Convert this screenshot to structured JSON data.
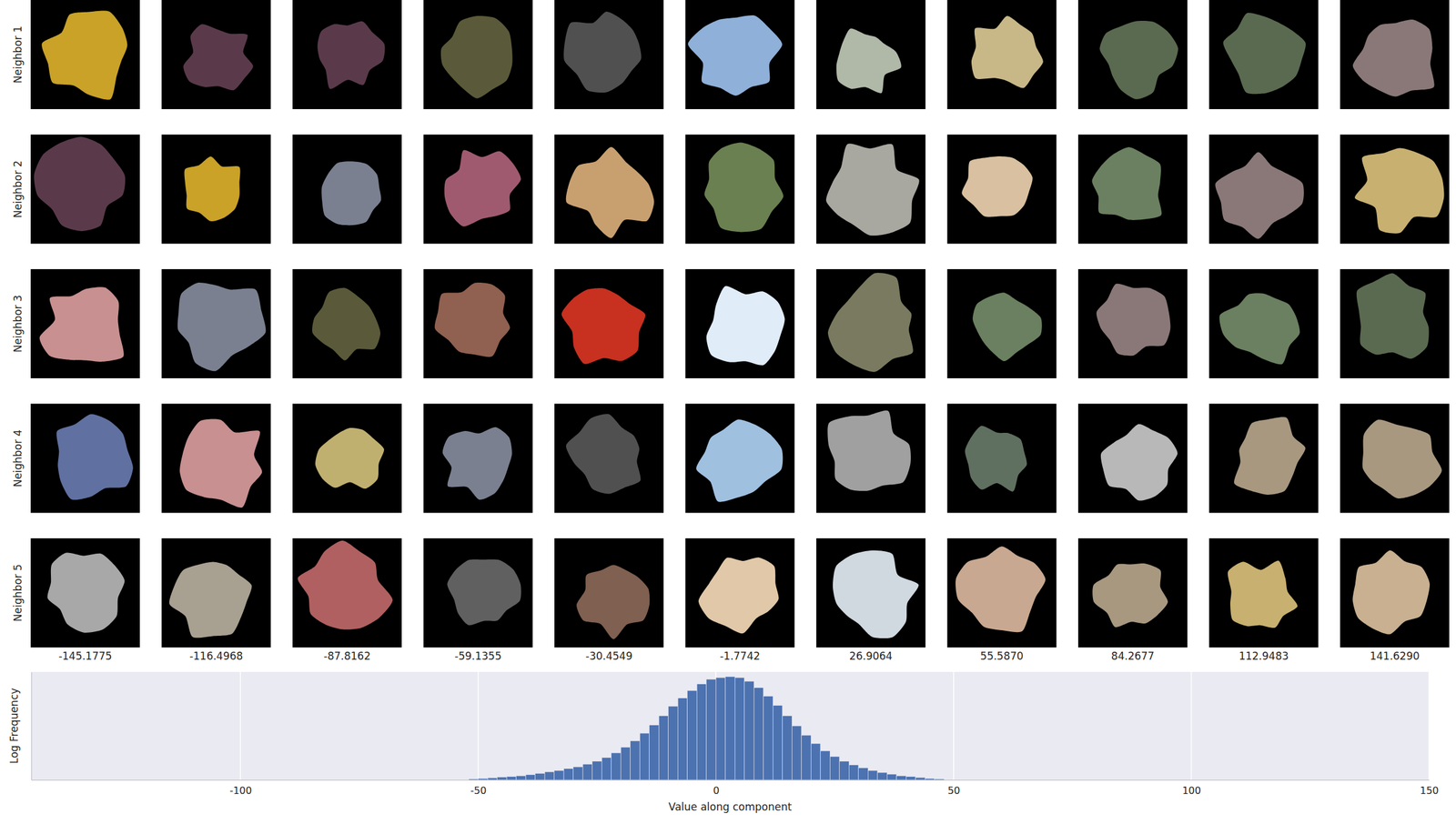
{
  "chart_data": {
    "type": "histogram",
    "x_label": "Value along component",
    "y_label": "Log Frequency",
    "bins": [
      -52,
      -50,
      -48,
      -46,
      -44,
      -42,
      -40,
      -38,
      -36,
      -34,
      -32,
      -30,
      -28,
      -26,
      -24,
      -22,
      -20,
      -18,
      -16,
      -14,
      -12,
      -10,
      -8,
      -6,
      -4,
      -2,
      0,
      2,
      4,
      6,
      8,
      10,
      12,
      14,
      16,
      18,
      20,
      22,
      24,
      26,
      28,
      30,
      32,
      34,
      36,
      38,
      40,
      42,
      44,
      46,
      48
    ],
    "values": [
      0.04,
      0.06,
      0.09,
      0.13,
      0.15,
      0.19,
      0.24,
      0.3,
      0.37,
      0.43,
      0.52,
      0.6,
      0.73,
      0.86,
      1.03,
      1.25,
      1.51,
      1.81,
      2.16,
      2.54,
      2.97,
      3.41,
      3.79,
      4.14,
      4.44,
      4.66,
      4.74,
      4.78,
      4.74,
      4.57,
      4.27,
      3.88,
      3.45,
      2.97,
      2.5,
      2.07,
      1.68,
      1.34,
      1.08,
      0.86,
      0.69,
      0.56,
      0.43,
      0.34,
      0.26,
      0.19,
      0.15,
      0.11,
      0.06,
      0.04
    ],
    "color": "#4c72b0",
    "xlim": [
      -144,
      150
    ],
    "xticks": [
      -100,
      -50,
      0,
      50,
      100,
      150
    ],
    "ylim": [
      0,
      5
    ],
    "grid": true,
    "tick_labels": "x"
  },
  "image_grid": {
    "row_labels": [
      "Neighbor 1",
      "Neighbor 2",
      "Neighbor 3",
      "Neighbor 4",
      "Neighbor 5"
    ],
    "column_values": [
      {
        "value": -145.1775,
        "label": "-145.1775"
      },
      {
        "value": -116.4968,
        "label": "-116.4968"
      },
      {
        "value": -87.8162,
        "label": "-87.8162"
      },
      {
        "value": -59.1355,
        "label": "-59.1355"
      },
      {
        "value": -30.4549,
        "label": "-30.4549"
      },
      {
        "value": -1.7742,
        "label": "-1.7742"
      },
      {
        "value": 26.9064,
        "label": "26.9064"
      },
      {
        "value": 55.587,
        "label": "55.5870"
      },
      {
        "value": 84.2677,
        "label": "84.2677"
      },
      {
        "value": 112.9483,
        "label": "112.9483"
      },
      {
        "value": 141.629,
        "label": "141.6290"
      }
    ],
    "patch_colors": [
      [
        "#c9a227",
        "#5a3a4a",
        "#5a3a4a",
        "#5a5a3a",
        "#505050",
        "#8fb0d8",
        "#b0b8a8",
        "#c8b888",
        "#5a6a50",
        "#5a6a50",
        "#8a7878"
      ],
      [
        "#5a3a4a",
        "#c9a227",
        "#7a8090",
        "#a05a70",
        "#c8a070",
        "#6a8050",
        "#a8a8a0",
        "#d8c0a0",
        "#6a8060",
        "#8a7878",
        "#c8b070"
      ],
      [
        "#c89090",
        "#7a8090",
        "#5a5a3a",
        "#906050",
        "#c83020",
        "#e0ecf8",
        "#7a7a60",
        "#6a8060",
        "#8a7878",
        "#6a8060",
        "#5a6a50"
      ],
      [
        "#6070a0",
        "#c89090",
        "#c0b070",
        "#7a8090",
        "#505050",
        "#a0c0e0",
        "#a0a0a0",
        "#607060",
        "#b8b8b8",
        "#a89880",
        "#a89880"
      ],
      [
        "#a8a8a8",
        "#a8a090",
        "#b06060",
        "#606060",
        "#806050",
        "#e0c8a8",
        "#d0d8e0",
        "#c8a890",
        "#a89880",
        "#c8b070",
        "#c8b090"
      ]
    ]
  }
}
